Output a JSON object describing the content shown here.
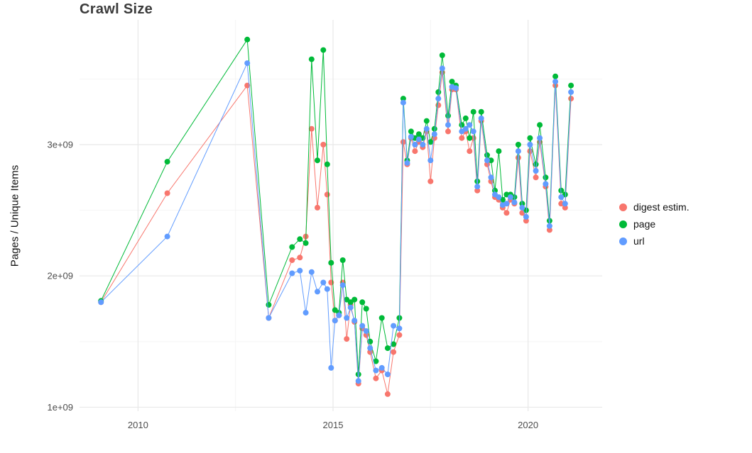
{
  "page": {
    "background": "#ffffff"
  },
  "chart_data": {
    "type": "line",
    "title": "Crawl Size",
    "ylabel": "Pages / Unique Items",
    "xlabel": "",
    "y_unit": "values are pages/items in units of 1e9 (billions)",
    "xlim": [
      2008.5,
      2021.9
    ],
    "ylim": [
      0.97,
      3.95
    ],
    "x_ticks": [
      2010,
      2015,
      2020
    ],
    "x_tick_labels": [
      "2010",
      "2015",
      "2020"
    ],
    "x_minor_ticks": [
      2012.5,
      2017.5
    ],
    "y_ticks": [
      1,
      2,
      3
    ],
    "y_tick_labels": [
      "1e+09",
      "2e+09",
      "3e+09"
    ],
    "y_minor_ticks": [
      1.5,
      2.5,
      3.5
    ],
    "grid": true,
    "legend_position": "right",
    "x": [
      2009.05,
      2010.75,
      2012.8,
      2013.35,
      2013.95,
      2014.15,
      2014.3,
      2014.45,
      2014.6,
      2014.75,
      2014.85,
      2014.95,
      2015.05,
      2015.15,
      2015.25,
      2015.35,
      2015.45,
      2015.55,
      2015.65,
      2015.75,
      2015.85,
      2015.95,
      2016.1,
      2016.25,
      2016.4,
      2016.55,
      2016.7,
      2016.8,
      2016.9,
      2017,
      2017.1,
      2017.2,
      2017.3,
      2017.4,
      2017.5,
      2017.6,
      2017.7,
      2017.8,
      2017.95,
      2018.05,
      2018.15,
      2018.3,
      2018.4,
      2018.5,
      2018.6,
      2018.7,
      2018.8,
      2018.95,
      2019.05,
      2019.15,
      2019.25,
      2019.35,
      2019.45,
      2019.55,
      2019.65,
      2019.75,
      2019.85,
      2019.95,
      2020.05,
      2020.2,
      2020.3,
      2020.45,
      2020.55,
      2020.7,
      2020.85,
      2020.95,
      2021.1
    ],
    "series": [
      {
        "name": "digest estim.",
        "color": "#F8766D",
        "y": [
          1.8,
          2.63,
          3.45,
          1.68,
          2.12,
          2.14,
          2.3,
          3.12,
          2.52,
          3.0,
          2.62,
          1.95,
          1.66,
          1.7,
          1.95,
          1.52,
          1.78,
          1.65,
          1.18,
          1.6,
          1.55,
          1.42,
          1.22,
          1.28,
          1.1,
          1.42,
          1.55,
          3.02,
          2.85,
          3.05,
          2.95,
          3.02,
          2.98,
          3.1,
          2.72,
          3.05,
          3.3,
          3.55,
          3.1,
          3.42,
          3.42,
          3.05,
          3.1,
          2.95,
          3.05,
          2.65,
          3.18,
          2.85,
          2.72,
          2.6,
          2.58,
          2.52,
          2.48,
          2.58,
          2.55,
          2.9,
          2.48,
          2.42,
          2.95,
          2.75,
          3.02,
          2.68,
          2.35,
          3.45,
          2.55,
          2.52,
          3.35
        ]
      },
      {
        "name": "page",
        "color": "#00BA38",
        "y": [
          1.81,
          2.87,
          3.8,
          1.78,
          2.22,
          2.28,
          2.25,
          3.65,
          2.88,
          3.72,
          2.85,
          2.1,
          1.74,
          1.72,
          2.12,
          1.82,
          1.8,
          1.82,
          1.25,
          1.8,
          1.75,
          1.5,
          1.35,
          1.68,
          1.45,
          1.48,
          1.68,
          3.35,
          2.88,
          3.1,
          3.05,
          3.08,
          3.05,
          3.18,
          3.02,
          3.12,
          3.4,
          3.68,
          3.22,
          3.48,
          3.45,
          3.15,
          3.2,
          3.05,
          3.25,
          2.72,
          3.25,
          2.92,
          2.88,
          2.65,
          2.95,
          2.58,
          2.62,
          2.62,
          2.6,
          3.0,
          2.55,
          2.5,
          3.05,
          2.85,
          3.15,
          2.75,
          2.42,
          3.52,
          2.65,
          2.62,
          3.45
        ]
      },
      {
        "name": "url",
        "color": "#619CFF",
        "y": [
          1.8,
          2.3,
          3.62,
          1.68,
          2.02,
          2.04,
          1.72,
          2.03,
          1.88,
          1.95,
          1.9,
          1.3,
          1.66,
          1.7,
          1.93,
          1.68,
          1.76,
          1.66,
          1.2,
          1.62,
          1.58,
          1.45,
          1.28,
          1.3,
          1.25,
          1.62,
          1.6,
          3.32,
          2.86,
          3.06,
          3.0,
          3.04,
          3.0,
          3.12,
          2.88,
          3.08,
          3.35,
          3.58,
          3.15,
          3.44,
          3.43,
          3.1,
          3.12,
          3.15,
          3.1,
          2.68,
          3.2,
          2.88,
          2.75,
          2.62,
          2.6,
          2.54,
          2.55,
          2.6,
          2.56,
          2.95,
          2.52,
          2.45,
          3.0,
          2.8,
          3.05,
          2.7,
          2.38,
          3.48,
          2.6,
          2.55,
          3.4
        ]
      }
    ]
  }
}
